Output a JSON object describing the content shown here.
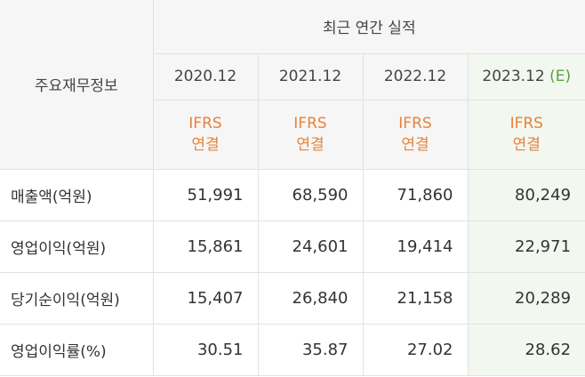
{
  "table": {
    "corner_label": "주요재무정보",
    "group_title": "최근 연간 실적",
    "periods": [
      {
        "year": "2020.12",
        "estimate_mark": "",
        "basis_line1": "IFRS",
        "basis_line2": "연결"
      },
      {
        "year": "2021.12",
        "estimate_mark": "",
        "basis_line1": "IFRS",
        "basis_line2": "연결"
      },
      {
        "year": "2022.12",
        "estimate_mark": "",
        "basis_line1": "IFRS",
        "basis_line2": "연결"
      },
      {
        "year": "2023.12",
        "estimate_mark": "(E)",
        "basis_line1": "IFRS",
        "basis_line2": "연결"
      }
    ],
    "rows": [
      {
        "label": "매출액(억원)",
        "values": [
          "51,991",
          "68,590",
          "71,860",
          "80,249"
        ]
      },
      {
        "label": "영업이익(억원)",
        "values": [
          "15,861",
          "24,601",
          "19,414",
          "22,971"
        ]
      },
      {
        "label": "당기순이익(억원)",
        "values": [
          "15,407",
          "26,840",
          "21,158",
          "20,289"
        ]
      },
      {
        "label": "영업이익률(%)",
        "values": [
          "30.51",
          "35.87",
          "27.02",
          "28.62"
        ]
      }
    ]
  },
  "colors": {
    "header_bg": "#f6f6f6",
    "accent_orange": "#e9823a",
    "estimate_bg": "#f2f7ef",
    "estimate_mark": "#5aa23a",
    "border": "#e2e2e2"
  }
}
